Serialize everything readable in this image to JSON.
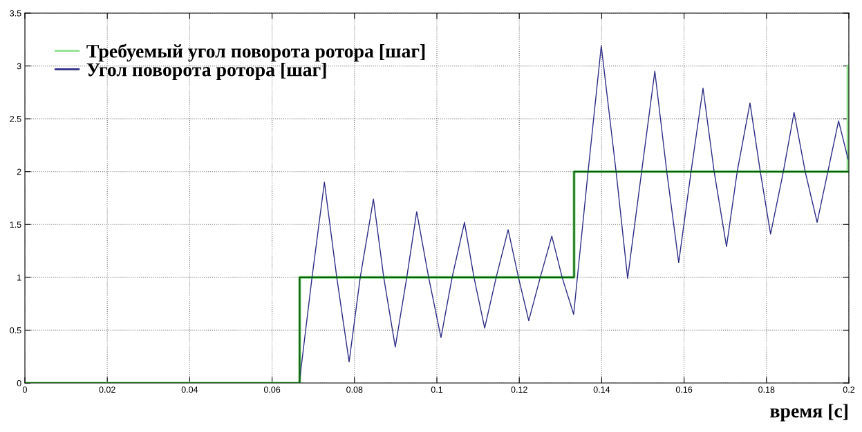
{
  "chart_data": {
    "type": "line",
    "xlabel": "время [с]",
    "xlim": [
      0,
      0.2
    ],
    "ylim": [
      0,
      3.5
    ],
    "xticks": [
      0,
      0.02,
      0.04,
      0.06,
      0.08,
      0.1,
      0.12,
      0.14,
      0.16,
      0.18,
      0.2
    ],
    "yticks": [
      0,
      0.5,
      1,
      1.5,
      2,
      2.5,
      3,
      3.5
    ],
    "grid": true,
    "legend": "top left",
    "line_style": "solid",
    "marker": "none",
    "series": [
      {
        "name": "Требуемый угол поворота ротора [шаг]",
        "type": "step",
        "color": "#8fe08f",
        "x": [
          0,
          0.0667,
          0.1333,
          0.1998,
          0.2
        ],
        "values": [
          0,
          1,
          2,
          3,
          3
        ]
      },
      {
        "name": "Угол поворота ротора [шаг]",
        "color": "#2b2b86",
        "x": [
          0,
          0.0666,
          0.0697,
          0.0727,
          0.0757,
          0.0787,
          0.0814,
          0.0846,
          0.0871,
          0.0899,
          0.0927,
          0.0951,
          0.098,
          0.101,
          0.1037,
          0.1067,
          0.109,
          0.1116,
          0.1144,
          0.1173,
          0.1198,
          0.1223,
          0.1251,
          0.1279,
          0.1304,
          0.1332,
          0.1367,
          0.1399,
          0.1435,
          0.1463,
          0.1497,
          0.1529,
          0.1558,
          0.1587,
          0.1617,
          0.1646,
          0.1673,
          0.1703,
          0.1729,
          0.176,
          0.1785,
          0.181,
          0.1841,
          0.1867,
          0.1894,
          0.1923,
          0.1949,
          0.1975,
          0.1998
        ],
        "values": [
          0,
          0,
          1,
          1.9,
          1,
          0.2,
          1,
          1.74,
          1,
          0.34,
          1,
          1.62,
          1,
          0.43,
          1,
          1.52,
          1,
          0.52,
          1,
          1.45,
          1,
          0.59,
          1,
          1.39,
          1,
          0.65,
          2,
          3.19,
          2,
          0.99,
          2,
          2.95,
          2,
          1.14,
          2,
          2.79,
          2,
          1.29,
          2,
          2.65,
          2,
          1.41,
          2,
          2.56,
          2,
          1.52,
          2,
          2.48,
          2.12
        ]
      },
      {
        "type": "step",
        "color": "#0b5a0b",
        "x": [
          0,
          0.0667,
          0.1333,
          0.2
        ],
        "values": [
          0,
          1,
          2,
          2
        ]
      }
    ]
  }
}
